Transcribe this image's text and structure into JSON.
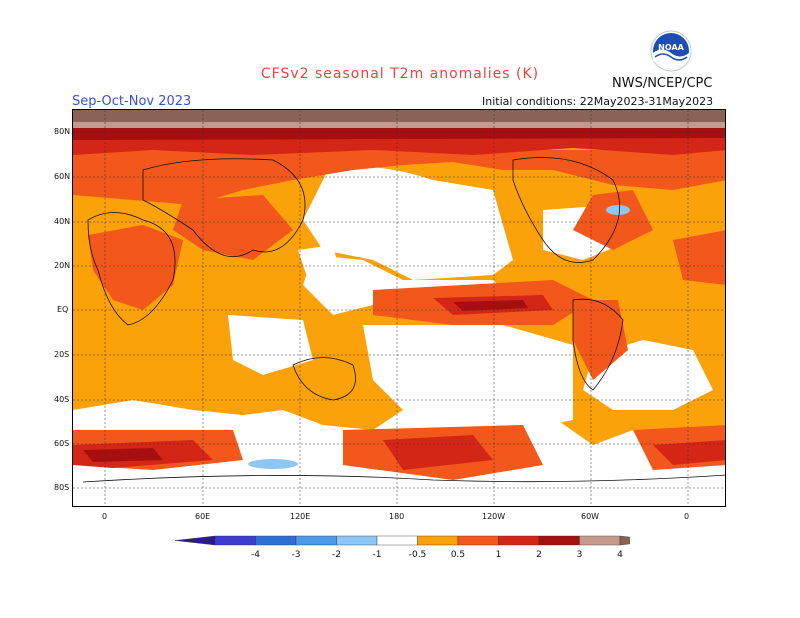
{
  "header": {
    "title": "CFSv2 seasonal T2m anomalies (K)",
    "season": "Sep-Oct-Nov 2023",
    "agency": "NWS/NCEP/CPC",
    "initial_conditions": "Initial conditions: 22May2023-31May2023",
    "logo_text": "NOAA"
  },
  "axes": {
    "lat_labels": [
      "80N",
      "60N",
      "40N",
      "20N",
      "EQ",
      "20S",
      "40S",
      "60S",
      "80S"
    ],
    "lon_labels": [
      "0",
      "60E",
      "120E",
      "180",
      "120W",
      "60W",
      "0"
    ]
  },
  "legend": {
    "labels": [
      "-4",
      "-3",
      "-2",
      "-1",
      "-0.5",
      "0.5",
      "1",
      "2",
      "3",
      "4"
    ],
    "colors": {
      "lt_neg4": "#2a1a8c",
      "neg4_neg3": "#3e3cd0",
      "neg3_neg2": "#2e6ed6",
      "neg2_neg1": "#4a9ae8",
      "neg1_neg05": "#8ec6f5",
      "neutral": "#ffffff",
      "p05_1": "#fba10a",
      "p1_2": "#f2581b",
      "p2_3": "#d42616",
      "p3_4": "#a50f0f",
      "p4_5": "#c49a8c",
      "gt5": "#8a6256"
    }
  }
}
